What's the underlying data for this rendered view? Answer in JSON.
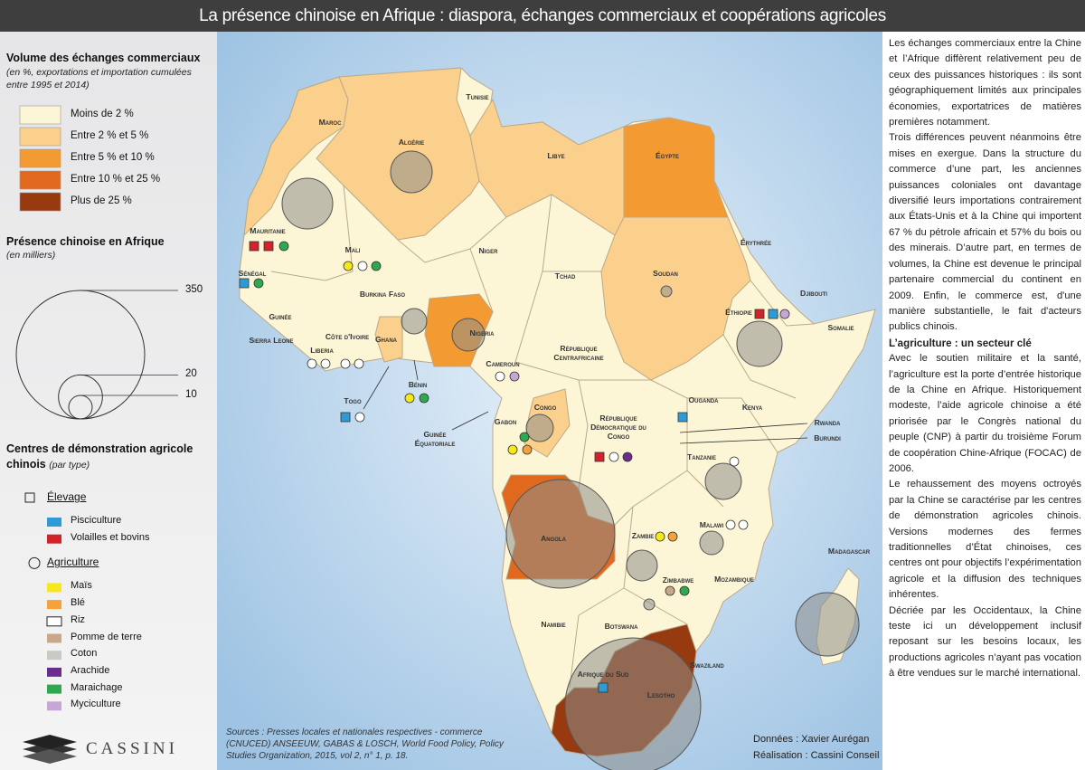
{
  "title": "La présence chinoise en Afrique : diaspora, échanges commerciaux et coopérations agricoles",
  "legend_trade": {
    "title": "Volume des échanges commerciaux",
    "subtitle": "(en %, exportations et importation cumulées entre 1995 et 2014)",
    "items": [
      {
        "label": "Moins de 2 %",
        "color": "#fdf6d6"
      },
      {
        "label": "Entre 2 % et 5 %",
        "color": "#fbd08c"
      },
      {
        "label": "Entre 5 % et 10 %",
        "color": "#f49a32"
      },
      {
        "label": "Entre 10 % et 25 %",
        "color": "#e0691d"
      },
      {
        "label": "Plus de 25 %",
        "color": "#983a10"
      }
    ]
  },
  "legend_presence": {
    "title": "Présence chinoise en Afrique",
    "subtitle": "(en milliers)",
    "ticks": [
      350,
      20,
      10
    ]
  },
  "legend_centres": {
    "title": "Centres de démonstration agricole chinois",
    "subtitle": "(par type)",
    "groups": [
      {
        "name": "Élevage",
        "items": [
          {
            "label": "Pisciculture",
            "color": "#2f9bd6"
          },
          {
            "label": "Volailles et bovins",
            "color": "#d2232a"
          }
        ]
      },
      {
        "name": "Agriculture",
        "items": [
          {
            "label": "Maïs",
            "color": "#f7e81a"
          },
          {
            "label": "Blé",
            "color": "#f5a23a"
          },
          {
            "label": "Riz",
            "color": "#ffffff"
          },
          {
            "label": "Pomme de terre",
            "color": "#c8a88a"
          },
          {
            "label": "Coton",
            "color": "#c9c9c5"
          },
          {
            "label": "Arachide",
            "color": "#6a2c8e"
          },
          {
            "label": "Maraichage",
            "color": "#2fa84f"
          },
          {
            "label": "Myciculture",
            "color": "#c7a6d6"
          }
        ]
      }
    ]
  },
  "countries": [
    "Maroc",
    "Algérie",
    "Tunisie",
    "Libye",
    "Égypte",
    "Mauritanie",
    "Mali",
    "Niger",
    "Tchad",
    "Soudan",
    "Érythrée",
    "Djibouti",
    "Éthiopie",
    "Somalie",
    "Sénégal",
    "Guinée",
    "Sierra Leone",
    "Liberia",
    "Côte d'Ivoire",
    "Burkina Faso",
    "Ghana",
    "Togo",
    "Bénin",
    "Nigeria",
    "Cameroun",
    "République Centrafricaine",
    "Guinée Équatoriale",
    "Gabon",
    "Congo",
    "République Démocratique du Congo",
    "Ouganda",
    "Kenya",
    "Rwanda",
    "Burundi",
    "Tanzanie",
    "Angola",
    "Zambie",
    "Malawi",
    "Madagascar",
    "Mozambique",
    "Zimbabwe",
    "Namibie",
    "Botswana",
    "Swaziland",
    "Lesotho",
    "Afrique du Sud"
  ],
  "text": {
    "paragraphs_1": [
      "Les échanges commerciaux entre la Chine et l’Afrique diffèrent relativement peu de ceux des puissances historiques : ils sont géographiquement limités aux principales économies, exportatrices de matières premières notamment.",
      "Trois différences peuvent néanmoins être mises en exergue. Dans la structure du commerce d’une part, les anciennes puissances coloniales ont davantage diversifié leurs importations contrairement aux États-Unis et à la Chine qui importent 67 % du pétrole africain et 57% du bois ou des minerais. D’autre part, en termes de volumes, la Chine est devenue le principal partenaire commercial du continent en 2009. Enfin, le commerce est, d'une manière substantielle, le fait d'acteurs publics chinois."
    ],
    "heading": "L’agriculture : un secteur clé",
    "paragraphs_2": [
      "Avec le soutien militaire et la santé, l’agriculture est la porte d’entrée historique de la Chine en Afrique. Historiquement modeste, l’aide agricole chinoise a été priorisée par le Congrès national du peuple (CNP) à partir du troisième Forum de coopération Chine-Afrique (FOCAC) de 2006.",
      "Le rehaussement des moyens octroyés par la Chine se caractérise par les centres de démonstration agricoles chinois. Versions modernes des fermes traditionnelles d’État chinoises, ces centres ont pour objectifs l’expérimentation agricole et la diffusion des techniques inhérentes.",
      "Décriée par les Occidentaux, la Chine teste ici un développement inclusif reposant sur les besoins locaux, les productions agricoles n’ayant pas vocation à être vendues sur le marché international."
    ]
  },
  "sources": "Sources : Presses locales et nationales respectives - commerce (CNUCED) ANSEEUW, GABAS & LOSCH, World Food Policy, Policy Studies Organization, 2015, vol 2, n° 1, p. 18.",
  "credits": [
    "Données : Xavier Aurégan",
    "Réalisation : Cassini Conseil"
  ],
  "logo": "CASSINI"
}
